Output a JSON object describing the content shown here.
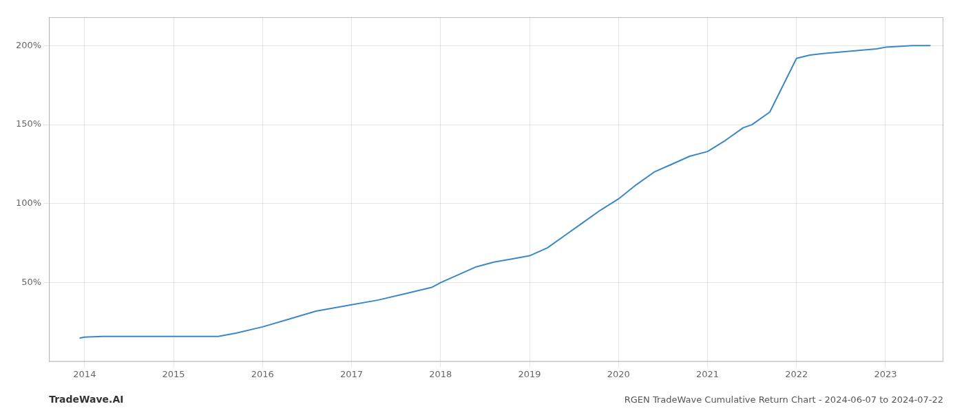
{
  "chart_data": {
    "type": "line",
    "annotations": [
      "TradeWave.AI",
      "RGEN TradeWave Cumulative Return Chart - 2024-06-07 to 2024-07-22"
    ],
    "color": "#3a87c8",
    "x": [
      2013.95,
      2014.0,
      2014.2,
      2014.4,
      2014.6,
      2014.8,
      2015.0,
      2015.2,
      2015.4,
      2015.5,
      2015.7,
      2016.0,
      2016.3,
      2016.6,
      2017.0,
      2017.3,
      2017.6,
      2017.9,
      2018.0,
      2018.2,
      2018.4,
      2018.6,
      2018.8,
      2019.0,
      2019.2,
      2019.4,
      2019.6,
      2019.8,
      2020.0,
      2020.2,
      2020.4,
      2020.6,
      2020.8,
      2021.0,
      2021.2,
      2021.4,
      2021.5,
      2021.7,
      2022.0,
      2022.15,
      2022.3,
      2022.5,
      2022.7,
      2022.9,
      2023.0,
      2023.3,
      2023.5
    ],
    "values": [
      15,
      15.5,
      16,
      16,
      16,
      16,
      16,
      16,
      16,
      16,
      18,
      22,
      27,
      32,
      36,
      39,
      43,
      47,
      50,
      55,
      60,
      63,
      65,
      67,
      72,
      80,
      88,
      96,
      103,
      112,
      120,
      125,
      130,
      133,
      140,
      148,
      150,
      158,
      192,
      194,
      195,
      196,
      197,
      198,
      199,
      200,
      200
    ],
    "xlim": [
      2013.6,
      2023.65
    ],
    "xticks": [
      2014,
      2015,
      2016,
      2017,
      2018,
      2019,
      2020,
      2021,
      2022,
      2023
    ],
    "ylim": [
      0,
      218
    ],
    "yticks": [
      {
        "value": 50,
        "label": "50%"
      },
      {
        "value": 100,
        "label": "100%"
      },
      {
        "value": 150,
        "label": "150%"
      },
      {
        "value": 200,
        "label": "200%"
      }
    ],
    "grid": true
  }
}
